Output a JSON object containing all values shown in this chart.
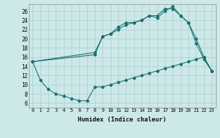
{
  "xlabel": "Humidex (Indice chaleur)",
  "background_color": "#cce8e8",
  "grid_color": "#aacccc",
  "line_color": "#1a7070",
  "xlim": [
    -0.5,
    23.5
  ],
  "ylim": [
    5.0,
    27.5
  ],
  "yticks": [
    6,
    8,
    10,
    12,
    14,
    16,
    18,
    20,
    22,
    24,
    26
  ],
  "xticks": [
    0,
    1,
    2,
    3,
    4,
    5,
    6,
    7,
    8,
    9,
    10,
    11,
    12,
    13,
    14,
    15,
    16,
    17,
    18,
    19,
    20,
    21,
    22,
    23
  ],
  "line1_x": [
    0,
    1,
    2,
    3,
    4,
    5,
    6,
    7,
    8,
    9,
    10,
    11,
    12,
    13,
    14,
    15,
    16,
    17,
    18,
    19,
    20,
    21,
    22,
    23
  ],
  "line1_y": [
    15,
    11,
    9,
    8,
    7.5,
    7,
    6.5,
    6.5,
    9.5,
    9.5,
    10,
    10.5,
    11,
    11.5,
    12,
    12.5,
    13,
    13.5,
    14,
    14.5,
    15,
    15.5,
    16,
    13
  ],
  "line2_x": [
    0,
    8,
    9,
    10,
    11,
    12,
    13,
    14,
    15,
    16,
    17,
    18,
    19,
    20,
    21,
    22,
    23
  ],
  "line2_y": [
    15,
    17,
    20.5,
    21,
    22,
    23,
    23.5,
    24,
    25,
    25,
    26.5,
    26.5,
    25,
    23.5,
    19,
    15.5,
    13
  ],
  "line3_x": [
    0,
    8,
    9,
    10,
    11,
    12,
    13,
    14,
    15,
    16,
    17,
    18,
    19,
    20,
    21,
    22,
    23
  ],
  "line3_y": [
    15,
    16.5,
    20.5,
    21,
    22.5,
    23.5,
    23.5,
    24,
    25,
    24.5,
    26,
    27,
    25,
    23.5,
    20,
    16,
    13
  ]
}
